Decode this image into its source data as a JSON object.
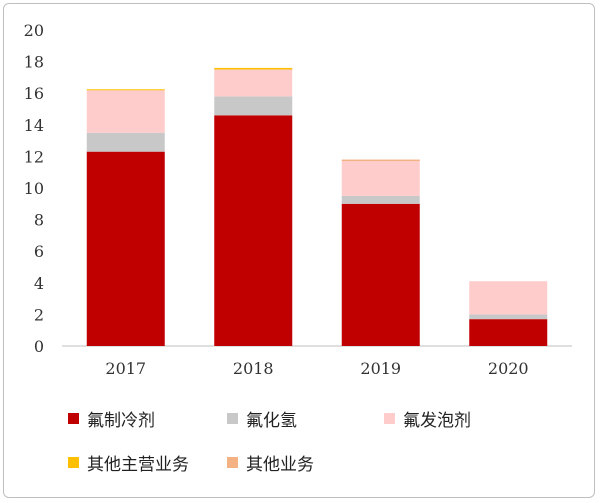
{
  "chart_data": {
    "type": "bar",
    "stacked": true,
    "categories": [
      "2017",
      "2018",
      "2019",
      "2020"
    ],
    "series": [
      {
        "name": "氟制冷剂",
        "color": "#C00000",
        "values": [
          12.3,
          14.6,
          9.0,
          1.7
        ]
      },
      {
        "name": "氟化氢",
        "color": "#C8C8C8",
        "values": [
          1.2,
          1.2,
          0.5,
          0.3
        ]
      },
      {
        "name": "氟发泡剂",
        "color": "#FFCCCC",
        "values": [
          2.7,
          1.7,
          2.2,
          2.1
        ]
      },
      {
        "name": "其他主营业务",
        "color": "#FFC000",
        "values": [
          0.05,
          0.1,
          0.0,
          0.0
        ]
      },
      {
        "name": "其他业务",
        "color": "#F4B183",
        "values": [
          0.0,
          0.0,
          0.1,
          0.0
        ]
      }
    ],
    "ylim": [
      0,
      20
    ],
    "yticks": [
      "0",
      "2",
      "4",
      "6",
      "8",
      "10",
      "12",
      "14",
      "16",
      "18",
      "20"
    ],
    "grid": false,
    "legend_placement": "bottom"
  }
}
